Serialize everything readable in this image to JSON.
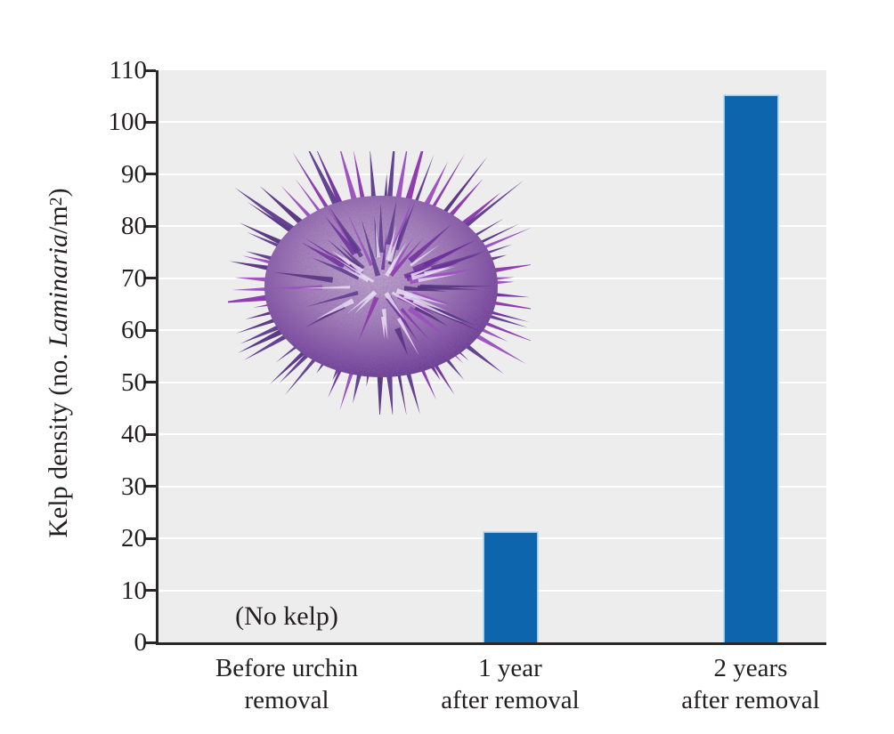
{
  "figure": {
    "background_color": "#ffffff",
    "text_color": "#231f20"
  },
  "chart_data": {
    "type": "bar",
    "title": "",
    "categories": [
      "Before urchin\nremoval",
      "1 year\nafter removal",
      "2 years\nafter removal"
    ],
    "values": [
      0,
      21,
      105
    ],
    "xlabel": "",
    "ylabel": "Kelp density (no. Laminaria/m²)",
    "ylabel_parts": [
      {
        "text": "Kelp density (no. ",
        "style": "normal"
      },
      {
        "text": "Laminaria",
        "style": "italic"
      },
      {
        "text": "/m",
        "style": "normal"
      },
      {
        "text": "2",
        "style": "sup"
      },
      {
        "text": ")",
        "style": "normal"
      }
    ],
    "ylim": [
      0,
      110
    ],
    "yticks": [
      0,
      10,
      20,
      30,
      40,
      50,
      60,
      70,
      80,
      90,
      100,
      110
    ],
    "grid": "horizontal-white-lines",
    "legend": "none",
    "annotations": [
      {
        "text": "(No kelp)",
        "category_index": 0,
        "value_y": 5
      }
    ],
    "colors": {
      "bar_fill": "#0d65ae",
      "bar_edge": "#96cbec",
      "plot_background": "#ededed",
      "gridline": "#ffffff",
      "axis_line": "#2a2729"
    },
    "illustration": {
      "name": "purple-sea-urchin",
      "body_colors": [
        "#c0aacf",
        "#a27fb9",
        "#7b4da1",
        "#4f2d80"
      ],
      "spike_colors": [
        "#8a35ad",
        "#6d2f9b",
        "#55307f",
        "#9b4cc0",
        "#5e3a8e"
      ],
      "highlight_color": "#e8ddf2"
    }
  }
}
